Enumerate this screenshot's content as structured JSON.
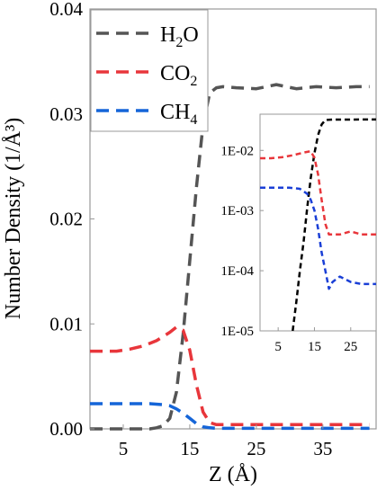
{
  "chart_data": [
    {
      "type": "line",
      "xlabel": "Z (Å)",
      "ylabel": "Number Density (1/Å³)",
      "xlim": [
        0,
        43
      ],
      "ylim": [
        0,
        0.04
      ],
      "xticks": [
        5,
        15,
        25,
        35
      ],
      "yticks": [
        0.0,
        0.01,
        0.02,
        0.03,
        0.04
      ],
      "ytick_labels": [
        "0.00",
        "0.01",
        "0.02",
        "0.03",
        "0.04"
      ],
      "legend_position": "top-left",
      "series": [
        {
          "name": "H2O",
          "legend_main": "H",
          "legend_sub": "2",
          "legend_tail": "O",
          "color": "#555555",
          "style": "dashed",
          "x": [
            0,
            3,
            6,
            9,
            10,
            11,
            12,
            13,
            14,
            15,
            16,
            17,
            18,
            19,
            20,
            22,
            25,
            28,
            31,
            34,
            37,
            40,
            42
          ],
          "y": [
            0.0,
            0.0,
            0.0,
            0.0,
            0.0001,
            0.0003,
            0.001,
            0.0035,
            0.009,
            0.016,
            0.023,
            0.029,
            0.032,
            0.0325,
            0.0326,
            0.0325,
            0.0324,
            0.0328,
            0.0324,
            0.0326,
            0.0325,
            0.0326,
            0.0326
          ]
        },
        {
          "name": "CO2",
          "legend_main": "CO",
          "legend_sub": "2",
          "legend_tail": "",
          "color": "#e8363b",
          "style": "dashed",
          "x": [
            0,
            2,
            4,
            6,
            8,
            10,
            12,
            13,
            14,
            15,
            16,
            17,
            18,
            19,
            20,
            23,
            26,
            30,
            35,
            40,
            42
          ],
          "y": [
            0.0074,
            0.0074,
            0.0074,
            0.0076,
            0.0079,
            0.0084,
            0.0092,
            0.0097,
            0.0094,
            0.0075,
            0.0042,
            0.0016,
            0.0006,
            0.0004,
            0.0004,
            0.0004,
            0.0004,
            0.0004,
            0.0004,
            0.0004,
            0.0004
          ]
        },
        {
          "name": "CH4",
          "legend_main": "CH",
          "legend_sub": "4",
          "legend_tail": "",
          "color": "#1565d8",
          "style": "dashed",
          "x": [
            0,
            3,
            6,
            9,
            11,
            12,
            13,
            14,
            15,
            16,
            17,
            18,
            19,
            20,
            25,
            30,
            35,
            40,
            42
          ],
          "y": [
            0.0024,
            0.0024,
            0.0024,
            0.0024,
            0.0023,
            0.0022,
            0.0019,
            0.0015,
            0.001,
            0.0005,
            0.0002,
            0.0001,
            5e-05,
            5e-05,
            5e-05,
            5e-05,
            5e-05,
            5e-05,
            5e-05
          ]
        }
      ]
    },
    {
      "type": "line",
      "role": "inset",
      "yscale": "log",
      "xlim": [
        0,
        32
      ],
      "ylim": [
        1e-05,
        0.04
      ],
      "xticks": [
        5,
        15,
        25
      ],
      "yticks": [
        1e-05,
        0.0001,
        0.001,
        0.01
      ],
      "ytick_labels": [
        "1E-05",
        "1E-04",
        "1E-03",
        "1E-02"
      ],
      "series": [
        {
          "name": "H2O",
          "color": "#000000",
          "style": "dashed",
          "x": [
            9,
            10,
            11,
            12,
            13,
            14,
            15,
            16,
            17,
            18,
            20,
            24,
            28,
            32
          ],
          "y": [
            1e-05,
            3e-05,
            0.0001,
            0.0003,
            0.0011,
            0.0035,
            0.009,
            0.018,
            0.027,
            0.032,
            0.0325,
            0.0325,
            0.0326,
            0.0326
          ]
        },
        {
          "name": "CO2",
          "color": "#e8363b",
          "style": "dashed",
          "x": [
            0,
            3,
            6,
            9,
            12,
            14,
            15,
            16,
            17,
            18,
            19,
            20,
            22,
            25,
            28,
            32
          ],
          "y": [
            0.0074,
            0.0074,
            0.0077,
            0.0083,
            0.0092,
            0.0097,
            0.0075,
            0.004,
            0.0015,
            0.0006,
            0.0004,
            0.0004,
            0.0004,
            0.00045,
            0.0004,
            0.0004
          ]
        },
        {
          "name": "CH4",
          "color": "#1a3fd6",
          "style": "dashed",
          "x": [
            0,
            4,
            8,
            11,
            13,
            14,
            15,
            16,
            17,
            18,
            19,
            20,
            22,
            25,
            28,
            32
          ],
          "y": [
            0.0024,
            0.0024,
            0.0024,
            0.0023,
            0.0019,
            0.0015,
            0.001,
            0.0005,
            0.0002,
            0.0001,
            5e-05,
            6.5e-05,
            8e-05,
            6.5e-05,
            6e-05,
            6e-05
          ]
        }
      ]
    }
  ]
}
